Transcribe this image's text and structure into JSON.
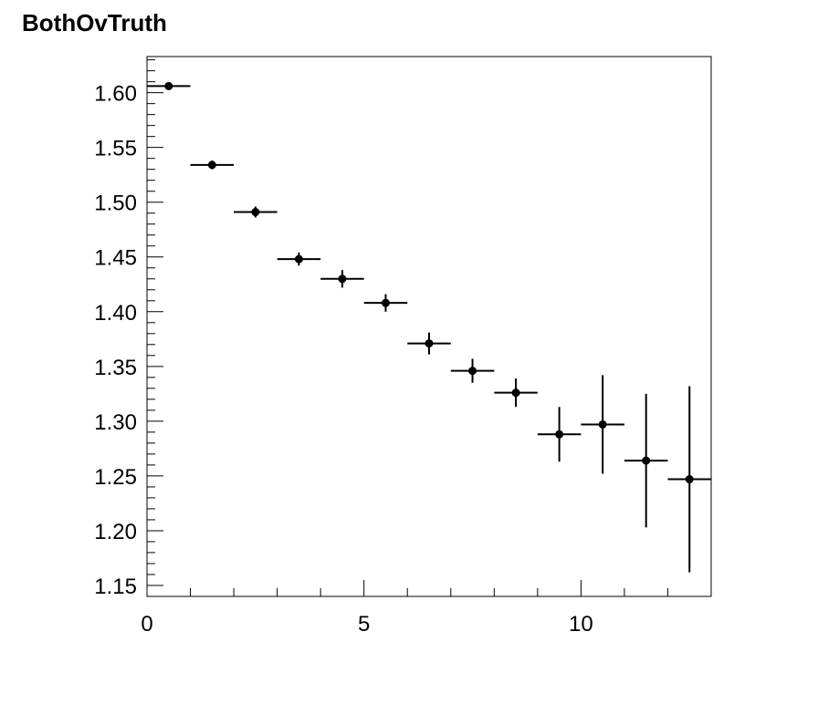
{
  "chart_data": {
    "type": "scatter",
    "title": "BothOvTruth",
    "xlabel": "",
    "ylabel": "",
    "xlim": [
      0,
      13
    ],
    "ylim": [
      1.14,
      1.633
    ],
    "x_ticks": [
      "0",
      "5",
      "10"
    ],
    "y_ticks": [
      "1.15",
      "1.20",
      "1.25",
      "1.30",
      "1.35",
      "1.40",
      "1.45",
      "1.50",
      "1.55",
      "1.60"
    ],
    "grid": false,
    "series": [
      {
        "points": [
          {
            "x": 0.5,
            "xerr": 0.5,
            "y": 1.606,
            "yerr": 0.002
          },
          {
            "x": 1.5,
            "xerr": 0.5,
            "y": 1.534,
            "yerr": 0.004
          },
          {
            "x": 2.5,
            "xerr": 0.5,
            "y": 1.491,
            "yerr": 0.005
          },
          {
            "x": 3.5,
            "xerr": 0.5,
            "y": 1.448,
            "yerr": 0.006
          },
          {
            "x": 4.5,
            "xerr": 0.5,
            "y": 1.43,
            "yerr": 0.008
          },
          {
            "x": 5.5,
            "xerr": 0.5,
            "y": 1.408,
            "yerr": 0.008
          },
          {
            "x": 6.5,
            "xerr": 0.5,
            "y": 1.371,
            "yerr": 0.01
          },
          {
            "x": 7.5,
            "xerr": 0.5,
            "y": 1.346,
            "yerr": 0.011
          },
          {
            "x": 8.5,
            "xerr": 0.5,
            "y": 1.326,
            "yerr": 0.013
          },
          {
            "x": 9.5,
            "xerr": 0.5,
            "y": 1.288,
            "yerr": 0.025
          },
          {
            "x": 10.5,
            "xerr": 0.5,
            "y": 1.297,
            "yerr": 0.045
          },
          {
            "x": 11.5,
            "xerr": 0.5,
            "y": 1.264,
            "yerr": 0.061
          },
          {
            "x": 12.5,
            "xerr": 0.5,
            "y": 1.247,
            "yerr": 0.085
          }
        ]
      }
    ]
  }
}
